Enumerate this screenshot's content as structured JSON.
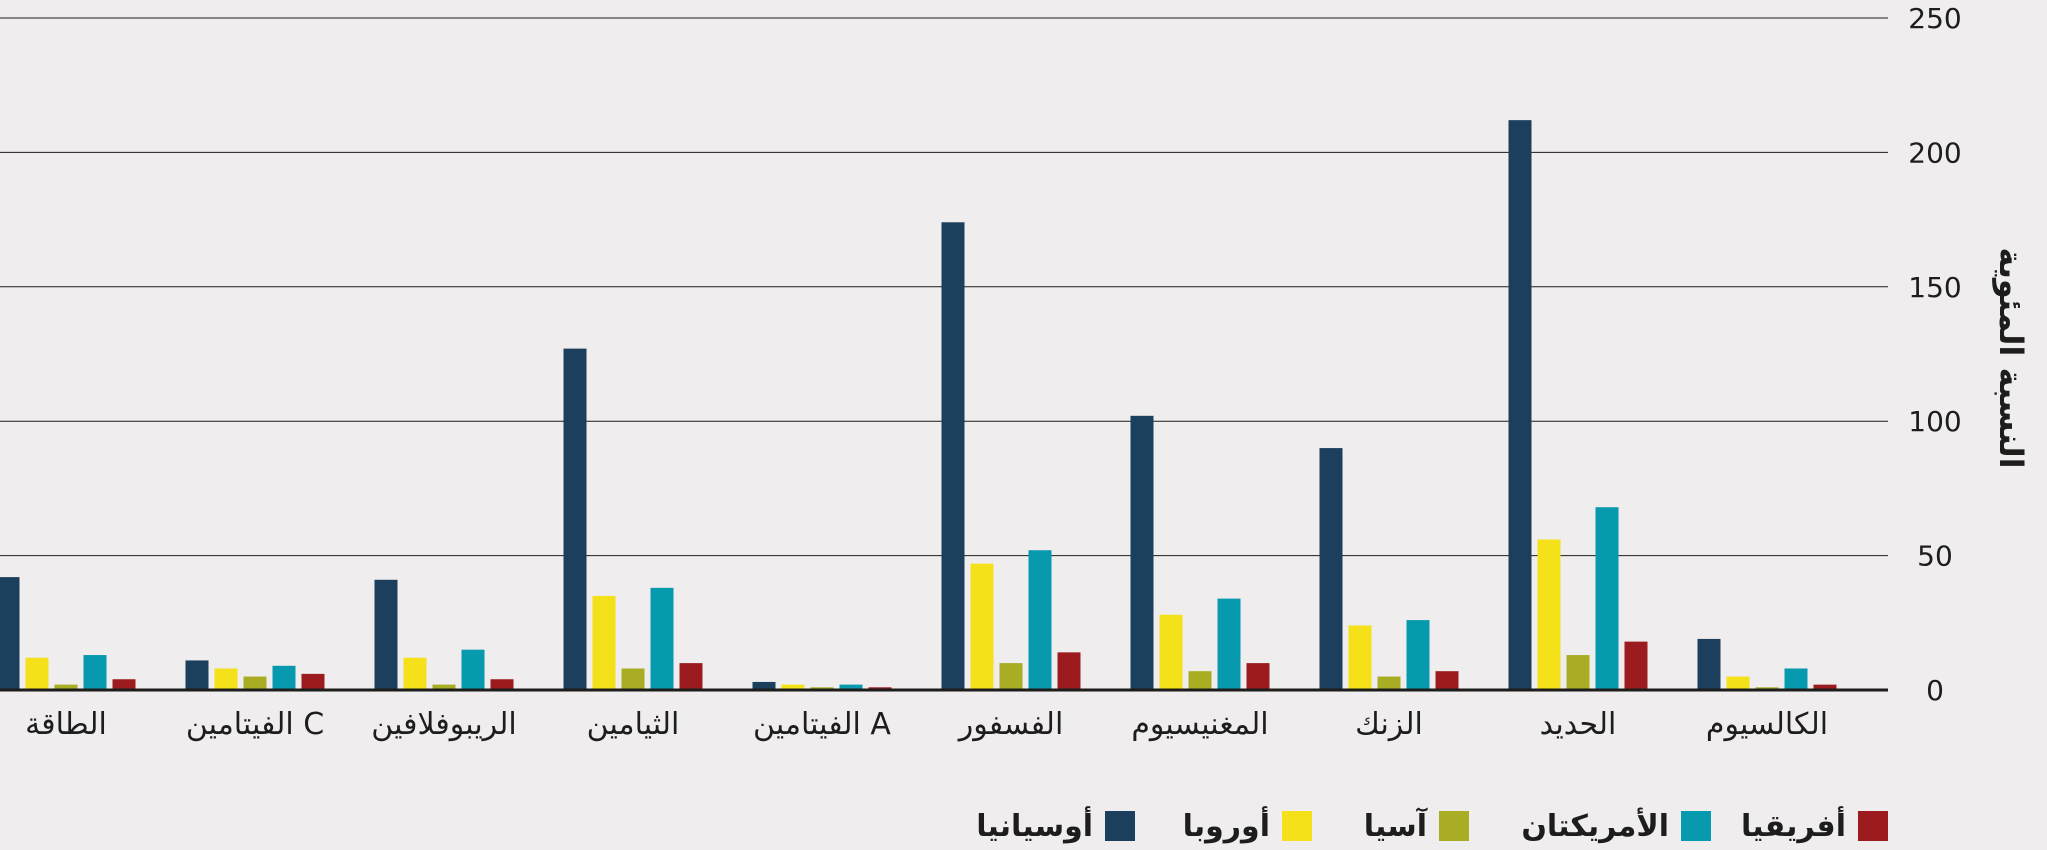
{
  "chart_data": {
    "type": "bar",
    "ylabel": "النسبة المئوية",
    "ylim": [
      0,
      250
    ],
    "yticks": [
      0,
      50,
      100,
      150,
      200,
      250
    ],
    "grid": true,
    "legend_position": "bottom",
    "categories": [
      "الكالسيوم",
      "الحديد",
      "الزنك",
      "المغنيسيوم",
      "الفسفور",
      "الفيتامين A",
      "الثيامين",
      "الريبوفلافين",
      "الفيتامين C",
      "الطاقة"
    ],
    "series": [
      {
        "name": "أوسيانيا",
        "color": "#1b3f5c",
        "values": [
          19,
          212,
          90,
          102,
          174,
          3,
          127,
          41,
          11,
          42
        ]
      },
      {
        "name": "أوروبا",
        "color": "#f5e11a",
        "values": [
          5,
          56,
          24,
          28,
          47,
          2,
          35,
          12,
          8,
          12
        ]
      },
      {
        "name": "آسيا",
        "color": "#a9ad23",
        "values": [
          1,
          13,
          5,
          7,
          10,
          1,
          8,
          2,
          5,
          2
        ]
      },
      {
        "name": "الأمريكتان",
        "color": "#0799ae",
        "values": [
          8,
          68,
          26,
          34,
          52,
          2,
          38,
          15,
          9,
          13
        ]
      },
      {
        "name": "أفريقيا",
        "color": "#9b1b1e",
        "values": [
          2,
          18,
          7,
          10,
          14,
          1,
          10,
          4,
          6,
          4
        ]
      }
    ]
  }
}
